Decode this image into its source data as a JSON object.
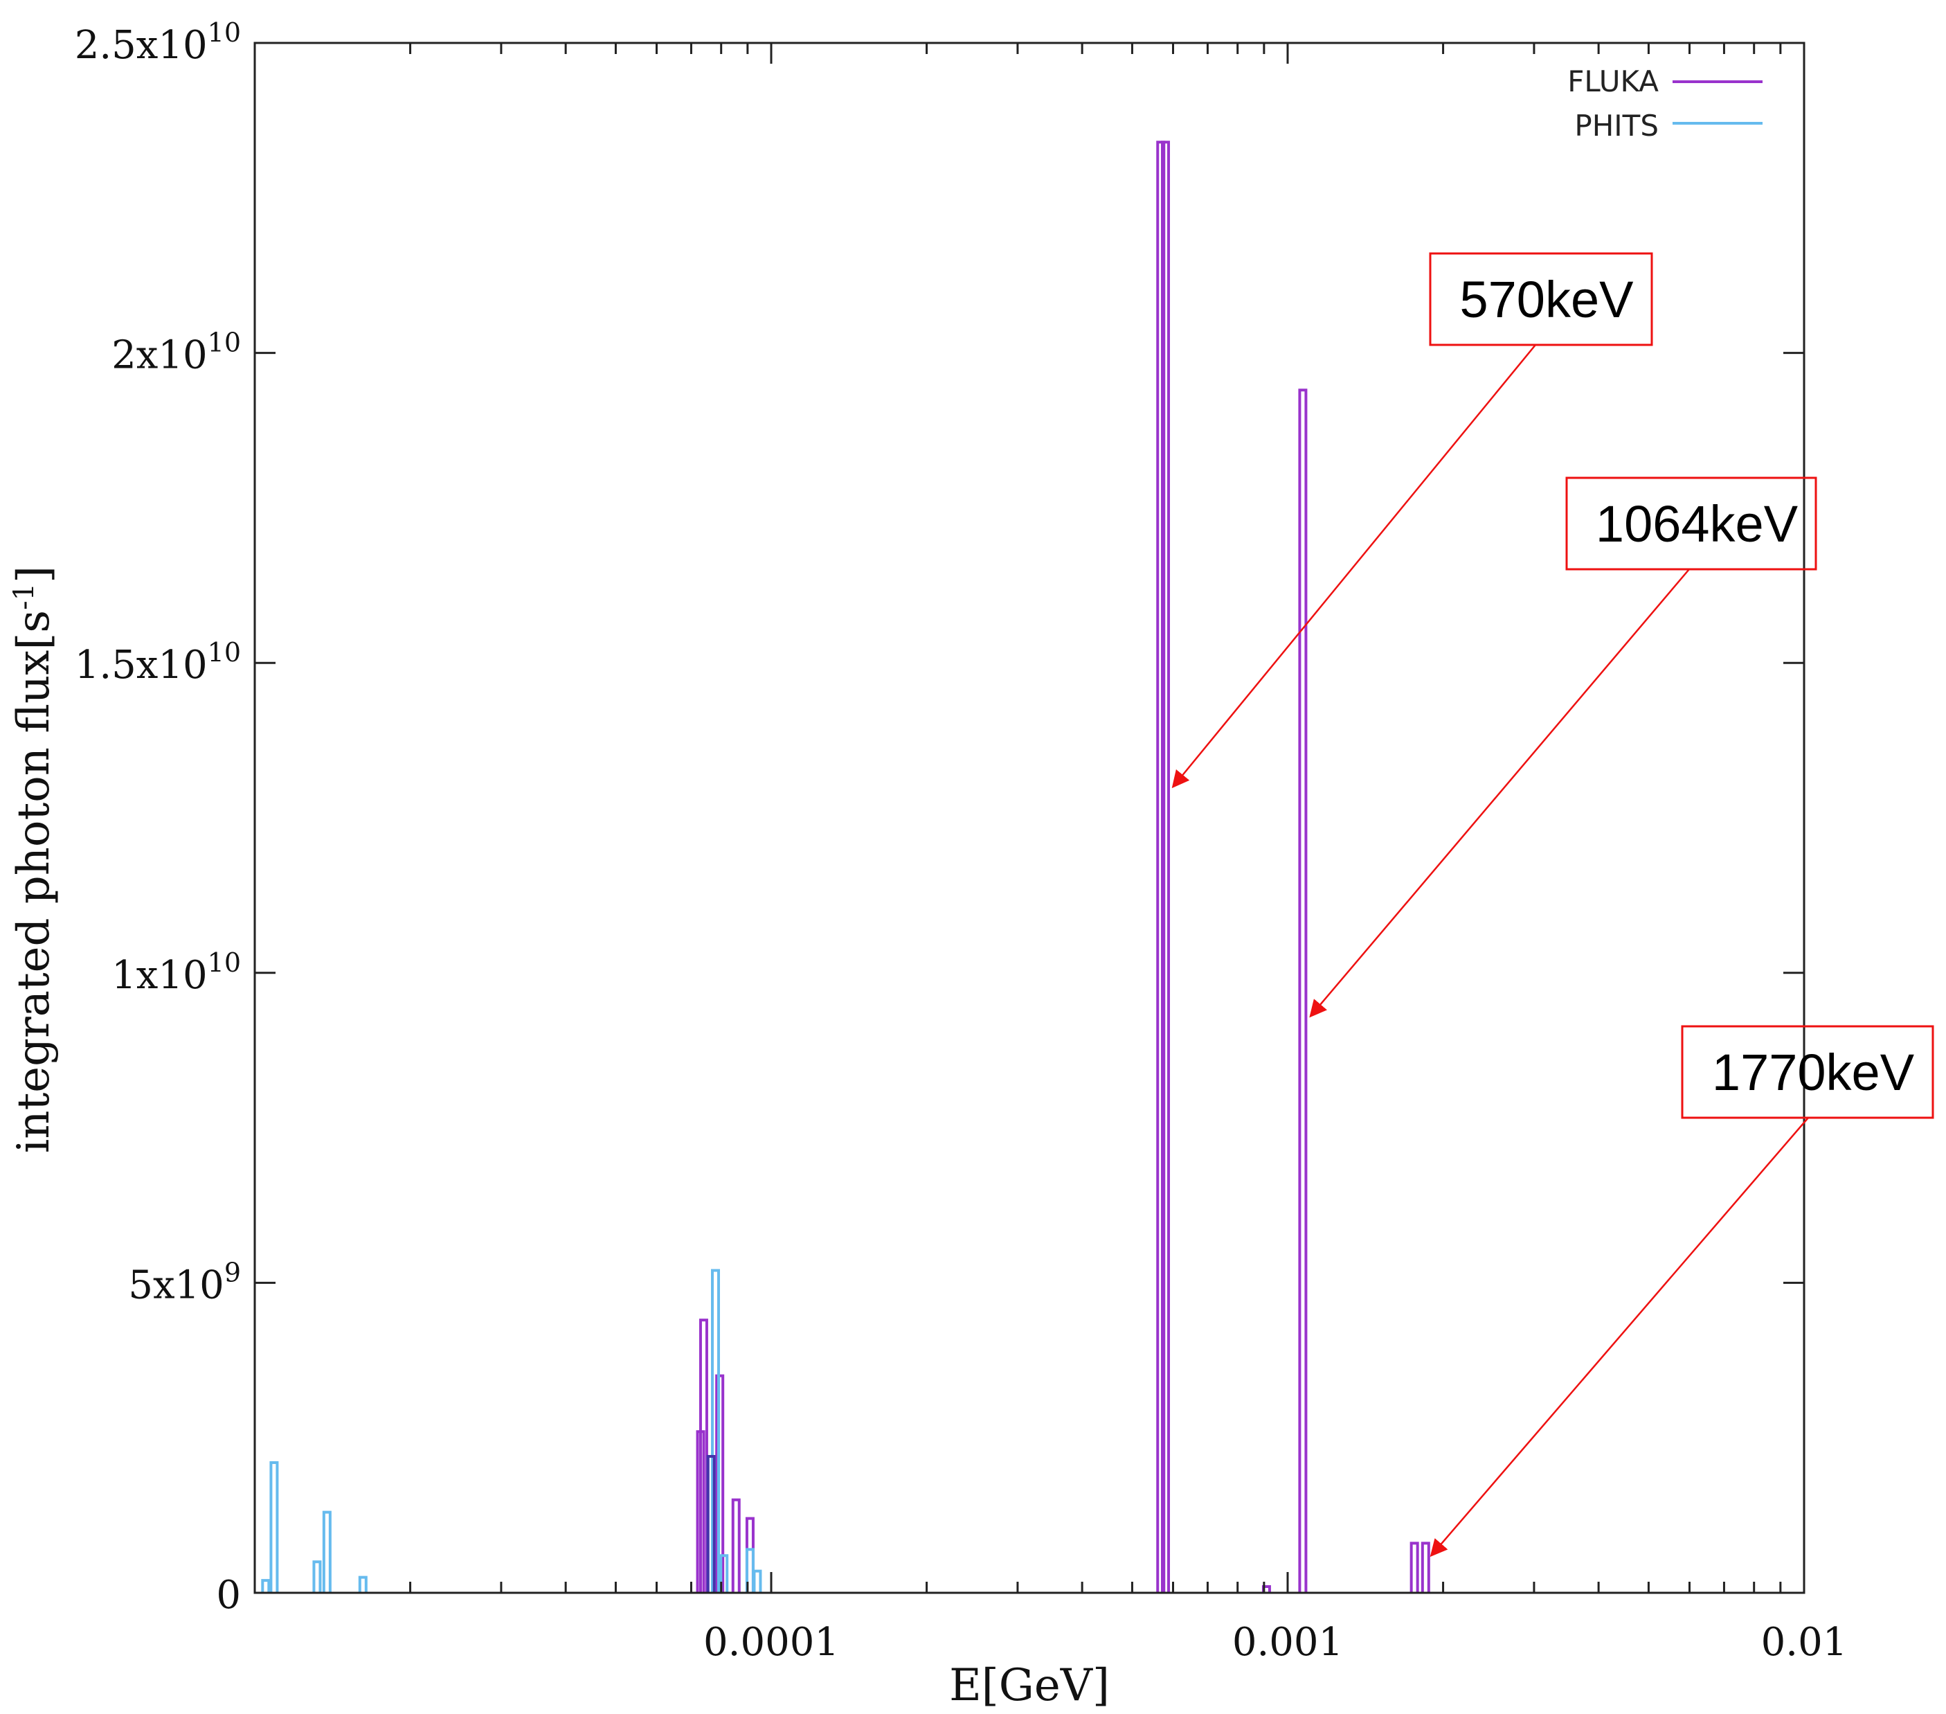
{
  "chart_data": {
    "type": "line",
    "xlabel": "E[GeV]",
    "ylabel": "integrated photon flux[s-1]",
    "ylabel_base": "integrated photon flux[s",
    "ylabel_sup": "-1",
    "ylabel_tail": "]",
    "xscale": "log",
    "xlim": [
      1e-05,
      0.01
    ],
    "ylim": [
      0,
      25000000000
    ],
    "x_ticks": [
      {
        "value": 0.0001,
        "label": "0.0001"
      },
      {
        "value": 0.001,
        "label": "0.001"
      },
      {
        "value": 0.01,
        "label": "0.01"
      }
    ],
    "y_ticks": [
      {
        "value": 0,
        "base": "0",
        "exp": ""
      },
      {
        "value": 5000000000,
        "base": "5x10",
        "exp": "9"
      },
      {
        "value": 10000000000,
        "base": "1x10",
        "exp": "10"
      },
      {
        "value": 15000000000,
        "base": "1.5x10",
        "exp": "10"
      },
      {
        "value": 20000000000,
        "base": "2x10",
        "exp": "10"
      },
      {
        "value": 25000000000,
        "base": "2.5x10",
        "exp": "10"
      }
    ],
    "grid": false,
    "legend_position": "top-right",
    "series": [
      {
        "name": "FLUKA",
        "color": "#9933cc",
        "peaks": [
          {
            "x": 7.3e-05,
            "y": 2600000000
          },
          {
            "x": 7.4e-05,
            "y": 4400000000
          },
          {
            "x": 7.95e-05,
            "y": 3500000000
          },
          {
            "x": 8.55e-05,
            "y": 1500000000
          },
          {
            "x": 9.1e-05,
            "y": 1200000000
          },
          {
            "x": 0.000568,
            "y": 23400000000
          },
          {
            "x": 0.00058,
            "y": 23400000000
          },
          {
            "x": 0.00091,
            "y": 100000000
          },
          {
            "x": 0.00107,
            "y": 19400000000
          },
          {
            "x": 0.00176,
            "y": 800000000
          },
          {
            "x": 0.00185,
            "y": 800000000
          }
        ]
      },
      {
        "name": "PHITS",
        "color": "#66bbee",
        "peaks": [
          {
            "x": 1.09e-05,
            "y": 2100000000
          },
          {
            "x": 1.05e-05,
            "y": 200000000
          },
          {
            "x": 1.32e-05,
            "y": 500000000
          },
          {
            "x": 1.38e-05,
            "y": 1300000000
          },
          {
            "x": 1.62e-05,
            "y": 250000000
          },
          {
            "x": 7.65e-05,
            "y": 2200000000
          },
          {
            "x": 7.8e-05,
            "y": 5200000000
          },
          {
            "x": 8.1e-05,
            "y": 600000000
          },
          {
            "x": 9.1e-05,
            "y": 700000000
          },
          {
            "x": 9.4e-05,
            "y": 350000000
          }
        ]
      },
      {
        "name": "",
        "color": "#4433aa",
        "peaks": [
          {
            "x": 7.65e-05,
            "y": 2200000000
          }
        ]
      }
    ],
    "annotations": [
      {
        "text": "570keV",
        "target": {
          "x": 0.000585,
          "y": 13000000000
        }
      },
      {
        "text": "1064keV",
        "target": {
          "x": 0.00108,
          "y": 9300000000
        }
      },
      {
        "text": "1770keV",
        "target": {
          "x": 0.00185,
          "y": 600000000
        }
      }
    ],
    "annotation_color": "#ee1111"
  }
}
